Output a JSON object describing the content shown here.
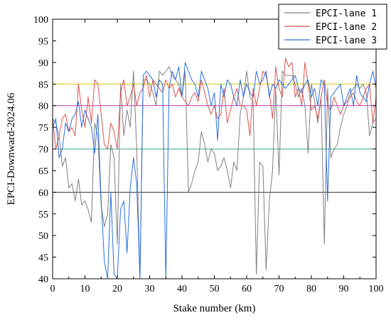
{
  "chart_data": {
    "type": "line",
    "xlabel": "Stake number (km)",
    "ylabel": "EPCI-Downward-2024.06",
    "xlim": [
      0,
      100
    ],
    "ylim": [
      40,
      100
    ],
    "xticks": [
      0,
      10,
      20,
      30,
      40,
      50,
      60,
      70,
      80,
      90,
      100
    ],
    "yticks": [
      40,
      45,
      50,
      55,
      60,
      65,
      70,
      75,
      80,
      85,
      90,
      95,
      100
    ],
    "legend_position": "top-right",
    "reference_lines": [
      {
        "y": 60,
        "color": "#333333"
      },
      {
        "y": 70,
        "color": "#3aa78a"
      },
      {
        "y": 80,
        "color": "#c040c0"
      },
      {
        "y": 85,
        "color": "#c8c800"
      }
    ],
    "series": [
      {
        "name": "EPCI-lane 1",
        "color": "#808080",
        "x": [
          0,
          1,
          2,
          3,
          4,
          5,
          6,
          7,
          8,
          9,
          10,
          11,
          12,
          13,
          14,
          15,
          16,
          17,
          18,
          19,
          20,
          21,
          22,
          23,
          24,
          25,
          26,
          27,
          28,
          29,
          30,
          31,
          32,
          33,
          34,
          35,
          36,
          37,
          38,
          39,
          40,
          41,
          42,
          43,
          44,
          45,
          46,
          47,
          48,
          49,
          50,
          51,
          52,
          53,
          54,
          55,
          56,
          57,
          58,
          59,
          60,
          61,
          62,
          63,
          64,
          65,
          66,
          67,
          68,
          69,
          70,
          71,
          72,
          73,
          74,
          75,
          76,
          77,
          78,
          79,
          80,
          81,
          82,
          83,
          84,
          85,
          86,
          87,
          88,
          89,
          90,
          91,
          92,
          93,
          94,
          95,
          96,
          97,
          98,
          99,
          100
        ],
        "y": [
          77,
          76,
          73,
          66,
          68,
          61,
          62,
          58,
          63,
          57,
          58,
          56,
          53,
          76,
          73,
          57,
          52,
          55,
          71,
          68,
          48,
          85,
          73,
          79,
          75,
          88,
          70,
          40,
          86,
          86,
          85,
          83,
          80,
          88,
          87,
          88,
          89,
          87,
          86,
          85,
          82,
          88,
          60,
          62,
          65,
          67,
          74,
          71,
          67,
          70,
          69,
          65,
          66,
          68,
          65,
          61,
          67,
          65,
          78,
          82,
          88,
          82,
          81,
          41,
          67,
          66,
          42,
          58,
          65,
          84,
          64,
          88,
          87,
          87,
          87,
          85,
          82,
          84,
          80,
          69,
          85,
          81,
          76,
          82,
          48,
          84,
          68,
          70,
          71,
          75,
          78,
          80,
          83,
          84,
          85,
          84,
          85,
          83,
          73,
          76,
          77
        ]
      },
      {
        "name": "EPCI-lane 2",
        "color": "#d9534f",
        "x": [
          0,
          1,
          2,
          3,
          4,
          5,
          6,
          7,
          8,
          9,
          10,
          11,
          12,
          13,
          14,
          15,
          16,
          17,
          18,
          19,
          20,
          21,
          22,
          23,
          24,
          25,
          26,
          27,
          28,
          29,
          30,
          31,
          32,
          33,
          34,
          35,
          36,
          37,
          38,
          39,
          40,
          41,
          42,
          43,
          44,
          45,
          46,
          47,
          48,
          49,
          50,
          51,
          52,
          53,
          54,
          55,
          56,
          57,
          58,
          59,
          60,
          61,
          62,
          63,
          64,
          65,
          66,
          67,
          68,
          69,
          70,
          71,
          72,
          73,
          74,
          75,
          76,
          77,
          78,
          79,
          80,
          81,
          82,
          83,
          84,
          85,
          86,
          87,
          88,
          89,
          90,
          91,
          92,
          93,
          94,
          95,
          96,
          97,
          98,
          99,
          100
        ],
        "y": [
          77,
          70,
          73,
          77,
          78,
          74,
          75,
          73,
          85,
          79,
          75,
          82,
          76,
          86,
          85,
          78,
          71,
          70,
          76,
          74,
          70,
          83,
          86,
          80,
          82,
          85,
          80,
          83,
          84,
          87,
          82,
          86,
          85,
          84,
          83,
          86,
          84,
          85,
          82,
          84,
          82,
          81,
          80,
          82,
          83,
          81,
          86,
          83,
          80,
          78,
          80,
          77,
          78,
          84,
          76,
          79,
          82,
          84,
          80,
          80,
          79,
          73,
          84,
          80,
          84,
          88,
          87,
          83,
          77,
          89,
          84,
          82,
          91,
          89,
          90,
          82,
          84,
          80,
          90,
          85,
          79,
          80,
          77,
          82,
          86,
          80,
          79,
          82,
          80,
          78,
          80,
          81,
          82,
          83,
          81,
          80,
          82,
          84,
          85,
          76,
          82
        ]
      },
      {
        "name": "EPCI-lane 3",
        "color": "#2a6fdb",
        "x": [
          0,
          1,
          2,
          3,
          4,
          5,
          6,
          7,
          8,
          9,
          10,
          11,
          12,
          13,
          14,
          15,
          16,
          17,
          18,
          19,
          20,
          21,
          22,
          23,
          24,
          25,
          26,
          27,
          28,
          29,
          30,
          31,
          32,
          33,
          34,
          35,
          36,
          37,
          38,
          39,
          40,
          41,
          42,
          43,
          44,
          45,
          46,
          47,
          48,
          49,
          50,
          51,
          52,
          53,
          54,
          55,
          56,
          57,
          58,
          59,
          60,
          61,
          62,
          63,
          64,
          65,
          66,
          67,
          68,
          69,
          70,
          71,
          72,
          73,
          74,
          75,
          76,
          77,
          78,
          79,
          80,
          81,
          82,
          83,
          84,
          85,
          86,
          87,
          88,
          89,
          90,
          91,
          92,
          93,
          94,
          95,
          96,
          97,
          98,
          99,
          100
        ],
        "y": [
          75,
          77,
          68,
          70,
          76,
          74,
          77,
          78,
          81,
          75,
          79,
          77,
          75,
          69,
          78,
          58,
          44,
          40,
          60,
          41,
          40,
          56,
          58,
          46,
          61,
          68,
          62,
          40,
          87,
          88,
          87,
          86,
          82,
          86,
          85,
          40,
          84,
          88,
          86,
          89,
          82,
          90,
          88,
          86,
          85,
          82,
          88,
          86,
          84,
          80,
          83,
          72,
          85,
          82,
          86,
          85,
          82,
          80,
          86,
          82,
          85,
          83,
          82,
          88,
          85,
          86,
          88,
          82,
          85,
          84,
          86,
          85,
          84,
          85,
          86,
          87,
          84,
          83,
          85,
          86,
          82,
          84,
          80,
          86,
          85,
          58,
          82,
          83,
          84,
          85,
          80,
          82,
          84,
          80,
          87,
          83,
          82,
          81,
          85,
          88,
          84
        ]
      }
    ]
  }
}
